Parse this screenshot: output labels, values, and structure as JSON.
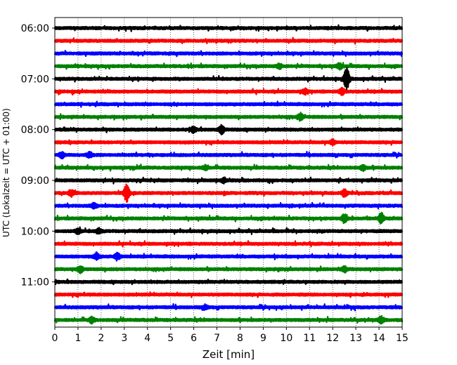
{
  "chart_data": {
    "type": "line",
    "title": "",
    "xlabel": "Zeit  [min]",
    "ylabel": "UTC (Lokalzeit = UTC + 01:00)",
    "xlim": [
      0,
      15
    ],
    "x_ticks": [
      0,
      1,
      2,
      3,
      4,
      5,
      6,
      7,
      8,
      9,
      10,
      11,
      12,
      13,
      14,
      15
    ],
    "y_ticks": [
      {
        "label": "06:00",
        "trace": 0
      },
      {
        "label": "07:00",
        "trace": 4
      },
      {
        "label": "08:00",
        "trace": 8
      },
      {
        "label": "09:00",
        "trace": 12
      },
      {
        "label": "10:00",
        "trace": 16
      },
      {
        "label": "11:00",
        "trace": 20
      }
    ],
    "grid": {
      "vertical": true,
      "style": "dotted"
    },
    "colors": [
      "#000000",
      "#ff0000",
      "#0000ff",
      "#008000"
    ],
    "series": [
      {
        "start": "06:00",
        "color": "#000000",
        "events": []
      },
      {
        "start": "06:15",
        "color": "#ff0000",
        "events": []
      },
      {
        "start": "06:30",
        "color": "#0000ff",
        "events": []
      },
      {
        "start": "06:45",
        "color": "#008000",
        "events": [
          {
            "x": 9.7,
            "amp": 0.35
          },
          {
            "x": 12.3,
            "amp": 0.4
          }
        ]
      },
      {
        "start": "07:00",
        "color": "#000000",
        "events": [
          {
            "x": 12.6,
            "amp": 1.7
          }
        ]
      },
      {
        "start": "07:15",
        "color": "#ff0000",
        "events": [
          {
            "x": 10.8,
            "amp": 0.35
          },
          {
            "x": 12.4,
            "amp": 0.5
          }
        ]
      },
      {
        "start": "07:30",
        "color": "#0000ff",
        "events": []
      },
      {
        "start": "07:45",
        "color": "#008000",
        "events": [
          {
            "x": 10.6,
            "amp": 0.5
          }
        ]
      },
      {
        "start": "08:00",
        "color": "#000000",
        "events": [
          {
            "x": 6.0,
            "amp": 0.4
          },
          {
            "x": 7.2,
            "amp": 0.7
          }
        ]
      },
      {
        "start": "08:15",
        "color": "#ff0000",
        "events": [
          {
            "x": 12.0,
            "amp": 0.35
          }
        ]
      },
      {
        "start": "08:30",
        "color": "#0000ff",
        "events": [
          {
            "x": 0.3,
            "amp": 0.4
          },
          {
            "x": 1.5,
            "amp": 0.35
          }
        ]
      },
      {
        "start": "08:45",
        "color": "#008000",
        "events": [
          {
            "x": 6.5,
            "amp": 0.3
          },
          {
            "x": 13.3,
            "amp": 0.4
          }
        ]
      },
      {
        "start": "09:00",
        "color": "#000000",
        "events": [
          {
            "x": 7.3,
            "amp": 0.35
          }
        ]
      },
      {
        "start": "09:15",
        "color": "#ff0000",
        "events": [
          {
            "x": 0.7,
            "amp": 0.5
          },
          {
            "x": 3.1,
            "amp": 1.3
          },
          {
            "x": 12.5,
            "amp": 0.5
          }
        ]
      },
      {
        "start": "09:30",
        "color": "#0000ff",
        "events": [
          {
            "x": 1.7,
            "amp": 0.4
          }
        ]
      },
      {
        "start": "09:45",
        "color": "#008000",
        "events": [
          {
            "x": 12.5,
            "amp": 0.6
          },
          {
            "x": 14.1,
            "amp": 0.8
          }
        ]
      },
      {
        "start": "10:00",
        "color": "#000000",
        "events": [
          {
            "x": 1.0,
            "amp": 0.4
          },
          {
            "x": 1.9,
            "amp": 0.4
          }
        ]
      },
      {
        "start": "10:15",
        "color": "#ff0000",
        "events": []
      },
      {
        "start": "10:30",
        "color": "#0000ff",
        "events": [
          {
            "x": 1.8,
            "amp": 0.5
          },
          {
            "x": 2.7,
            "amp": 0.5
          }
        ]
      },
      {
        "start": "10:45",
        "color": "#008000",
        "events": [
          {
            "x": 1.1,
            "amp": 0.5
          },
          {
            "x": 12.5,
            "amp": 0.4
          }
        ]
      },
      {
        "start": "11:00",
        "color": "#000000",
        "events": []
      },
      {
        "start": "11:15",
        "color": "#ff0000",
        "events": []
      },
      {
        "start": "11:30",
        "color": "#0000ff",
        "events": [
          {
            "x": 6.5,
            "amp": 0.3
          }
        ]
      },
      {
        "start": "11:45",
        "color": "#008000",
        "events": [
          {
            "x": 1.6,
            "amp": 0.4
          },
          {
            "x": 14.1,
            "amp": 0.5
          }
        ]
      }
    ]
  }
}
